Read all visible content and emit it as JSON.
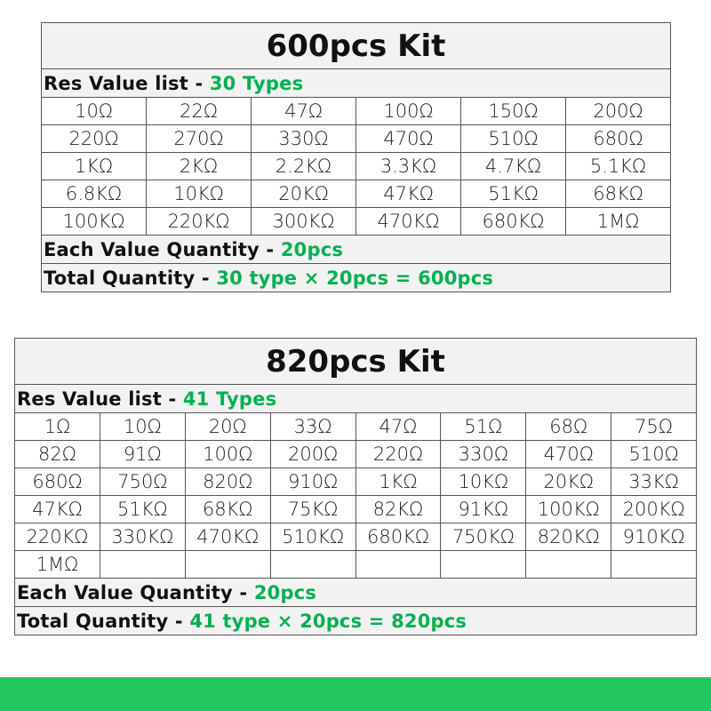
{
  "kits": [
    {
      "title": "600pcs Kit",
      "list_label": "Res Value list - ",
      "list_count": "30 Types",
      "columns": 6,
      "values": [
        "10Ω",
        "22Ω",
        "47Ω",
        "100Ω",
        "150Ω",
        "200Ω",
        "220Ω",
        "270Ω",
        "330Ω",
        "470Ω",
        "510Ω",
        "680Ω",
        "1KΩ",
        "2KΩ",
        "2.2KΩ",
        "3.3KΩ",
        "4.7KΩ",
        "5.1KΩ",
        "6.8KΩ",
        "10KΩ",
        "20KΩ",
        "47KΩ",
        "51KΩ",
        "68KΩ",
        "100KΩ",
        "220KΩ",
        "300KΩ",
        "470KΩ",
        "680KΩ",
        "1MΩ"
      ],
      "each_label": "Each Value Quantity - ",
      "each_value": "20pcs",
      "total_label": "Total Quantity - ",
      "total_value": "30 type × 20pcs = 600pcs"
    },
    {
      "title": "820pcs Kit",
      "list_label": "Res Value list - ",
      "list_count": "41 Types",
      "columns": 8,
      "values": [
        "1Ω",
        "10Ω",
        "20Ω",
        "33Ω",
        "47Ω",
        "51Ω",
        "68Ω",
        "75Ω",
        "82Ω",
        "91Ω",
        "100Ω",
        "200Ω",
        "220Ω",
        "330Ω",
        "470Ω",
        "510Ω",
        "680Ω",
        "750Ω",
        "820Ω",
        "910Ω",
        "1KΩ",
        "10KΩ",
        "20KΩ",
        "33KΩ",
        "47KΩ",
        "51KΩ",
        "68KΩ",
        "75KΩ",
        "82KΩ",
        "91KΩ",
        "100KΩ",
        "200KΩ",
        "220KΩ",
        "330KΩ",
        "470KΩ",
        "510KΩ",
        "680KΩ",
        "750KΩ",
        "820KΩ",
        "910KΩ",
        "1MΩ"
      ],
      "each_label": "Each Value Quantity - ",
      "each_value": "20pcs",
      "total_label": "Total Quantity - ",
      "total_value": "41 type × 20pcs = 820pcs"
    }
  ],
  "colors": {
    "highlight": "#00b050",
    "footer_bar": "#22c55e",
    "header_bg": "#f2f2f2"
  }
}
